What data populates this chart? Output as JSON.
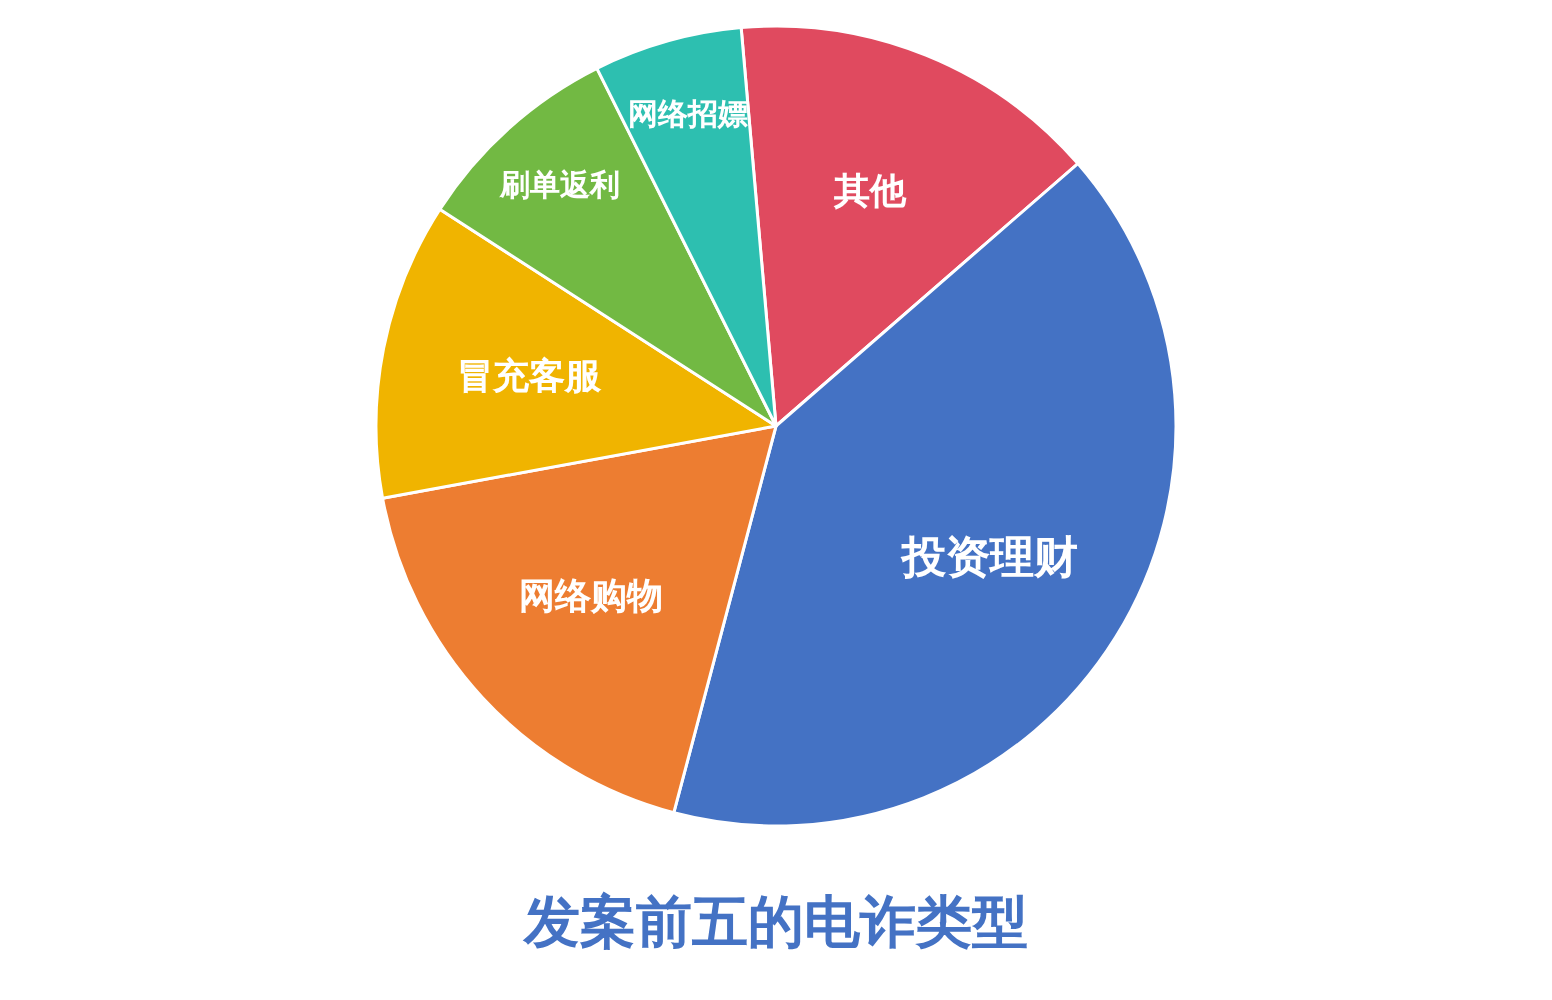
{
  "chart_data": {
    "type": "pie",
    "title": "发案前五的电诈类型",
    "categories": [
      "其他",
      "投资理财",
      "网络购物",
      "冒充客服",
      "刷单返利",
      "网络招嫖"
    ],
    "values": [
      15,
      40.5,
      18,
      12,
      8.5,
      6
    ],
    "colors": [
      "#e04a5f",
      "#4472c4",
      "#ed7d31",
      "#f0b400",
      "#72b943",
      "#2dbfb0"
    ]
  }
}
